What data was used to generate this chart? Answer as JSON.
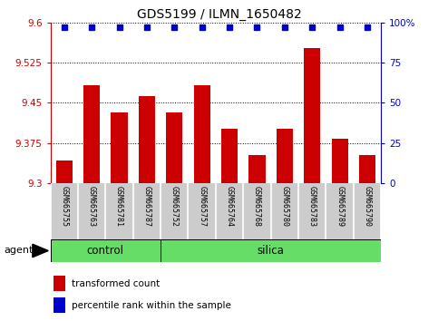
{
  "title": "GDS5199 / ILMN_1650482",
  "samples": [
    "GSM665755",
    "GSM665763",
    "GSM665781",
    "GSM665787",
    "GSM665752",
    "GSM665757",
    "GSM665764",
    "GSM665768",
    "GSM665780",
    "GSM665783",
    "GSM665789",
    "GSM665790"
  ],
  "bar_values": [
    9.342,
    9.482,
    9.432,
    9.462,
    9.432,
    9.482,
    9.402,
    9.352,
    9.402,
    9.552,
    9.382,
    9.352
  ],
  "percentile_values": [
    97,
    97,
    97,
    97,
    97,
    97,
    97,
    97,
    97,
    97,
    97,
    97
  ],
  "ylim_left": [
    9.3,
    9.6
  ],
  "ylim_right": [
    0,
    100
  ],
  "yticks_left": [
    9.3,
    9.375,
    9.45,
    9.525,
    9.6
  ],
  "yticks_right": [
    0,
    25,
    50,
    75,
    100
  ],
  "bar_color": "#cc0000",
  "dot_color": "#0000cc",
  "n_control": 4,
  "n_silica": 8,
  "control_color": "#66dd66",
  "silica_color": "#66dd66",
  "agent_label": "agent",
  "control_label": "control",
  "silica_label": "silica",
  "legend_bar_label": "transformed count",
  "legend_dot_label": "percentile rank within the sample",
  "tick_bg_color": "#cccccc",
  "left_axis_color": "#cc0000",
  "right_axis_color": "#0000cc"
}
